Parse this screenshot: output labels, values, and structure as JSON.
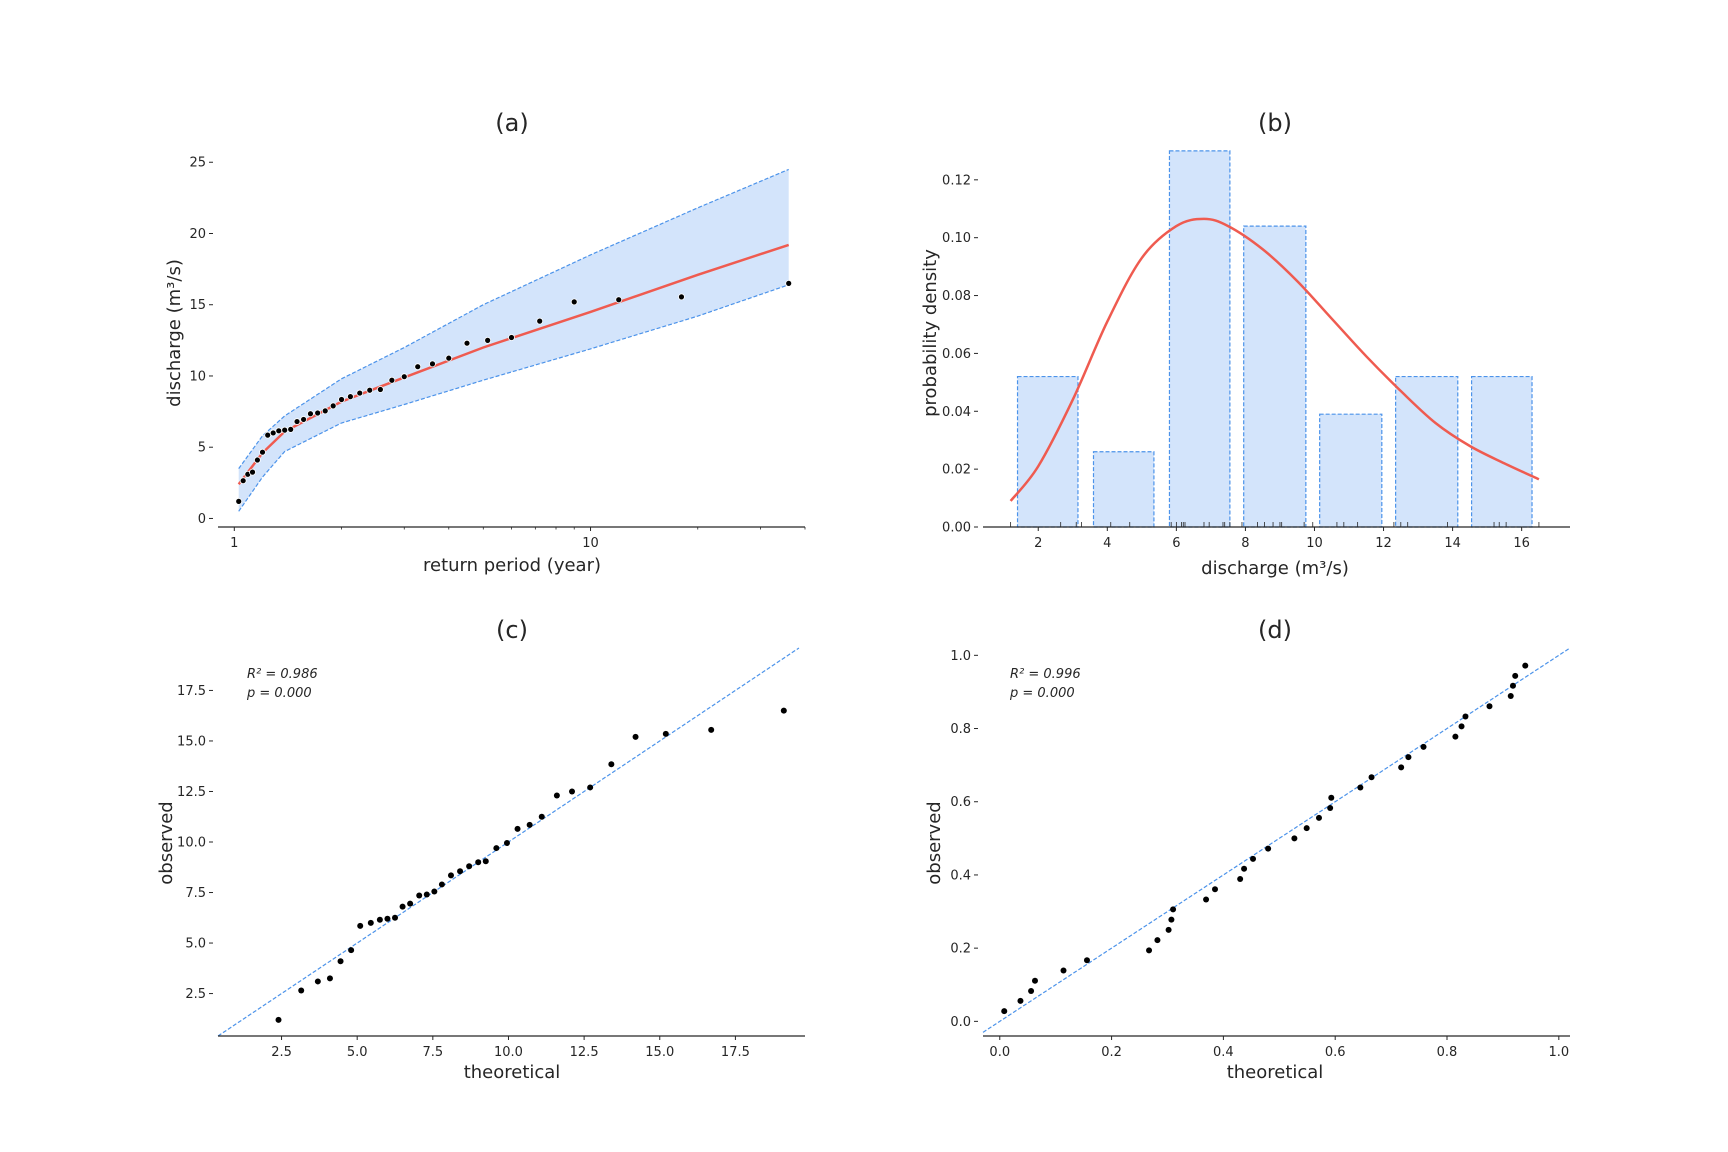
{
  "colors": {
    "fit_line": "#ef5b50",
    "band_fill": "#d3e4fb",
    "band_edge": "#4c93ea",
    "points": "#000000",
    "axis": "#262626"
  },
  "chart_data": [
    {
      "id": "a",
      "type": "line",
      "title": "(a)",
      "xlabel": "return period (year)",
      "ylabel": "discharge (m³/s)",
      "xscale": "log",
      "xlim": [
        0.9,
        40
      ],
      "ylim": [
        -0.6,
        26
      ],
      "xticks": [
        1,
        10
      ],
      "xtick_labels": [
        "1",
        "10"
      ],
      "yticks": [
        0,
        5,
        10,
        15,
        20,
        25
      ],
      "ytick_labels": [
        "0",
        "5",
        "10",
        "15",
        "20",
        "25"
      ],
      "observed": {
        "return_period": [
          1.029,
          1.059,
          1.091,
          1.125,
          1.161,
          1.2,
          1.241,
          1.286,
          1.333,
          1.385,
          1.44,
          1.5,
          1.565,
          1.636,
          1.714,
          1.8,
          1.895,
          2.0,
          2.118,
          2.25,
          2.4,
          2.571,
          2.769,
          3.0,
          3.273,
          3.6,
          4.0,
          4.5,
          5.143,
          6.0,
          7.2,
          9.0,
          12.0,
          18.0,
          36.0
        ],
        "discharge": [
          1.2,
          2.65,
          3.1,
          3.25,
          4.1,
          4.65,
          5.85,
          6.0,
          6.15,
          6.2,
          6.25,
          6.8,
          6.95,
          7.35,
          7.4,
          7.55,
          7.9,
          8.35,
          8.55,
          8.8,
          9.0,
          9.05,
          9.7,
          9.95,
          10.65,
          10.85,
          11.25,
          12.3,
          12.5,
          12.7,
          13.85,
          15.2,
          15.35,
          15.55,
          16.5
        ]
      },
      "fit": {
        "return_period": [
          1.029,
          1.2,
          1.385,
          2.0,
          3.0,
          5.0,
          10.0,
          20.0,
          36.0
        ],
        "discharge": [
          2.4,
          4.6,
          6.1,
          8.2,
          9.9,
          12.0,
          14.5,
          17.1,
          19.2
        ]
      },
      "ci_upper": [
        3.5,
        5.8,
        7.2,
        9.8,
        12.0,
        15.0,
        18.5,
        21.8,
        24.5
      ],
      "ci_lower": [
        0.5,
        2.9,
        4.7,
        6.7,
        8.0,
        9.7,
        11.9,
        14.2,
        16.4
      ]
    },
    {
      "id": "b",
      "type": "bar",
      "title": "(b)",
      "xlabel": "discharge (m³/s)",
      "ylabel": "probability density",
      "xlim": [
        0.4,
        17.4
      ],
      "ylim": [
        0,
        0.131
      ],
      "xticks": [
        2,
        4,
        6,
        8,
        10,
        12,
        14,
        16
      ],
      "xtick_labels": [
        "2",
        "4",
        "6",
        "8",
        "10",
        "12",
        "14",
        "16"
      ],
      "yticks": [
        0.0,
        0.02,
        0.04,
        0.06,
        0.08,
        0.1,
        0.12
      ],
      "ytick_labels": [
        "0.00",
        "0.02",
        "0.04",
        "0.06",
        "0.08",
        "0.10",
        "0.12"
      ],
      "bins": [
        {
          "left": 1.4,
          "right": 3.15,
          "density": 0.052
        },
        {
          "left": 3.6,
          "right": 5.35,
          "density": 0.026
        },
        {
          "left": 5.8,
          "right": 7.55,
          "density": 0.13
        },
        {
          "left": 7.95,
          "right": 9.75,
          "density": 0.104
        },
        {
          "left": 10.15,
          "right": 11.95,
          "density": 0.039
        },
        {
          "left": 12.35,
          "right": 14.15,
          "density": 0.052
        },
        {
          "left": 14.55,
          "right": 16.3,
          "density": 0.052
        }
      ],
      "pdf": {
        "x": [
          1.2,
          2.0,
          3.0,
          4.0,
          5.0,
          6.0,
          6.8,
          7.5,
          8.5,
          9.5,
          10.5,
          11.5,
          12.5,
          13.5,
          14.5,
          15.5,
          16.5
        ],
        "y": [
          0.009,
          0.021,
          0.044,
          0.071,
          0.093,
          0.104,
          0.1065,
          0.104,
          0.096,
          0.085,
          0.072,
          0.059,
          0.047,
          0.036,
          0.028,
          0.022,
          0.0165
        ]
      },
      "rug": [
        1.2,
        2.65,
        3.1,
        3.25,
        4.1,
        4.65,
        5.85,
        6.0,
        6.15,
        6.2,
        6.25,
        6.8,
        6.95,
        7.35,
        7.4,
        7.55,
        7.9,
        8.35,
        8.55,
        8.8,
        9.0,
        9.05,
        9.7,
        9.95,
        10.65,
        10.85,
        11.25,
        12.3,
        12.5,
        12.7,
        13.85,
        15.2,
        15.35,
        15.55,
        16.5
      ]
    },
    {
      "id": "c",
      "type": "scatter",
      "title": "(c)",
      "xlabel": "theoretical",
      "ylabel": "observed",
      "xlim": [
        0.4,
        19.8
      ],
      "ylim": [
        0.4,
        19.6
      ],
      "xticks": [
        2.5,
        5.0,
        7.5,
        10.0,
        12.5,
        15.0,
        17.5
      ],
      "xtick_labels": [
        "2.5",
        "5.0",
        "7.5",
        "10.0",
        "12.5",
        "15.0",
        "17.5"
      ],
      "yticks": [
        2.5,
        5.0,
        7.5,
        10.0,
        12.5,
        15.0,
        17.5
      ],
      "ytick_labels": [
        "2.5",
        "5.0",
        "7.5",
        "10.0",
        "12.5",
        "15.0",
        "17.5"
      ],
      "annotation": [
        "R² = 0.986",
        "p = 0.000"
      ],
      "reference_line": "y = x",
      "x": [
        2.4,
        3.15,
        3.7,
        4.1,
        4.45,
        4.8,
        5.1,
        5.45,
        5.75,
        6.0,
        6.25,
        6.5,
        6.75,
        7.05,
        7.3,
        7.55,
        7.8,
        8.1,
        8.4,
        8.7,
        9.0,
        9.25,
        9.6,
        9.95,
        10.3,
        10.7,
        11.1,
        11.6,
        12.1,
        12.7,
        13.4,
        14.2,
        15.2,
        16.7,
        19.1
      ],
      "y": [
        1.2,
        2.65,
        3.1,
        3.25,
        4.1,
        4.65,
        5.85,
        6.0,
        6.15,
        6.2,
        6.25,
        6.8,
        6.95,
        7.35,
        7.4,
        7.55,
        7.9,
        8.35,
        8.55,
        8.8,
        9.0,
        9.05,
        9.7,
        9.95,
        10.65,
        10.85,
        11.25,
        12.3,
        12.5,
        12.7,
        13.85,
        15.2,
        15.35,
        15.55,
        16.5
      ]
    },
    {
      "id": "d",
      "type": "scatter",
      "title": "(d)",
      "xlabel": "theoretical",
      "ylabel": "observed",
      "xlim": [
        -0.03,
        1.02
      ],
      "ylim": [
        -0.04,
        1.02
      ],
      "xticks": [
        0.0,
        0.2,
        0.4,
        0.6,
        0.8,
        1.0
      ],
      "xtick_labels": [
        "0.0",
        "0.2",
        "0.4",
        "0.6",
        "0.8",
        "1.0"
      ],
      "yticks": [
        0.0,
        0.2,
        0.4,
        0.6,
        0.8,
        1.0
      ],
      "ytick_labels": [
        "0.0",
        "0.2",
        "0.4",
        "0.6",
        "0.8",
        "1.0"
      ],
      "annotation": [
        "R² = 0.996",
        "p = 0.000"
      ],
      "reference_line": "y = x",
      "x": [
        0.008,
        0.037,
        0.056,
        0.063,
        0.114,
        0.156,
        0.267,
        0.282,
        0.302,
        0.307,
        0.31,
        0.369,
        0.385,
        0.43,
        0.437,
        0.453,
        0.48,
        0.527,
        0.549,
        0.571,
        0.591,
        0.593,
        0.645,
        0.665,
        0.718,
        0.731,
        0.758,
        0.815,
        0.826,
        0.833,
        0.876,
        0.914,
        0.918,
        0.922,
        0.94
      ],
      "y": [
        0.028,
        0.056,
        0.083,
        0.111,
        0.139,
        0.167,
        0.194,
        0.222,
        0.25,
        0.278,
        0.306,
        0.333,
        0.361,
        0.389,
        0.417,
        0.444,
        0.472,
        0.5,
        0.528,
        0.556,
        0.583,
        0.611,
        0.639,
        0.667,
        0.694,
        0.722,
        0.75,
        0.778,
        0.806,
        0.833,
        0.861,
        0.889,
        0.917,
        0.944,
        0.972
      ]
    }
  ]
}
